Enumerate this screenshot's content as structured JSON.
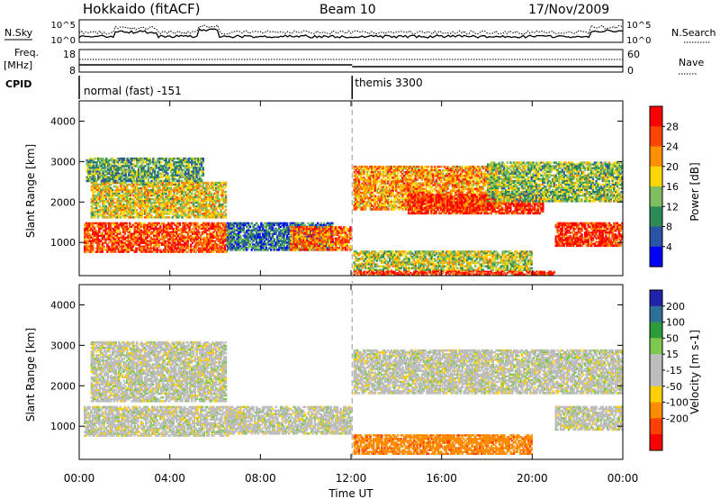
{
  "header": {
    "station": "Hokkaido (fitACF)",
    "beam": "Beam 10",
    "date": "17/Nov/2009"
  },
  "noise_panel": {
    "left_label": "N.Sky",
    "right_label": "N.Search",
    "ticks_left": [
      "10^5",
      "10^0"
    ],
    "ticks_right": [
      "10^5",
      "10^0"
    ]
  },
  "freq_panel": {
    "left_label_line1": "Freq.",
    "left_label_line2": "[MHz]",
    "right_label": "Nave",
    "ticks_left": [
      "18",
      "8"
    ],
    "ticks_right": [
      "60",
      "0"
    ]
  },
  "cpid": {
    "label": "CPID",
    "segments": [
      {
        "name": "normal (fast) -151",
        "start_hour": 0
      },
      {
        "name": "themis 3300",
        "start_hour": 12.05
      }
    ]
  },
  "colors": {
    "power_scale": [
      "#0000ff",
      "#2a54a6",
      "#2e8b57",
      "#7fbf5f",
      "#ffd700",
      "#ff9000",
      "#ff4500",
      "#ff0000"
    ],
    "velocity_scale": [
      "#2222aa",
      "#2e6f9a",
      "#2a9d3a",
      "#7ec850",
      "#bdbdbd",
      "#bdbdbd",
      "#ffd000",
      "#ff8c00",
      "#ff4000",
      "#ff0000"
    ]
  },
  "chart_data": [
    {
      "type": "heatmap",
      "title": "Power",
      "xlabel": "Time UT",
      "ylabel": "Slant Range [km]",
      "ylim": [
        180,
        4500
      ],
      "xlim": [
        0,
        24
      ],
      "yticks": [
        "1000",
        "2000",
        "3000",
        "4000"
      ],
      "colorbar": {
        "label": "Power [dB]",
        "ticks": [
          "4",
          "8",
          "12",
          "16",
          "20",
          "24",
          "28"
        ],
        "range": [
          0,
          32
        ]
      },
      "regions": [
        {
          "t0": 0.2,
          "t1": 6.6,
          "r0": 750,
          "r1": 1500,
          "value": 26
        },
        {
          "t0": 0.5,
          "t1": 6.5,
          "r0": 1600,
          "r1": 2500,
          "value": 18
        },
        {
          "t0": 0.3,
          "t1": 5.5,
          "r0": 2500,
          "r1": 3100,
          "value": 12
        },
        {
          "t0": 6.5,
          "t1": 11.2,
          "r0": 800,
          "r1": 1500,
          "value": 8
        },
        {
          "t0": 9.3,
          "t1": 12.0,
          "r0": 800,
          "r1": 1400,
          "value": 24
        },
        {
          "t0": 12.1,
          "t1": 18.5,
          "r0": 1800,
          "r1": 2900,
          "value": 22
        },
        {
          "t0": 14.5,
          "t1": 20.5,
          "r0": 1700,
          "r1": 2200,
          "value": 28
        },
        {
          "t0": 21.0,
          "t1": 24.0,
          "r0": 900,
          "r1": 1500,
          "value": 28
        },
        {
          "t0": 18.0,
          "t1": 24.0,
          "r0": 2000,
          "r1": 3000,
          "value": 14
        },
        {
          "t0": 12.1,
          "t1": 20.0,
          "r0": 300,
          "r1": 800,
          "value": 16
        },
        {
          "t0": 12.1,
          "t1": 21.0,
          "r0": 200,
          "r1": 300,
          "value": 28
        }
      ]
    },
    {
      "type": "heatmap",
      "title": "Velocity",
      "xlabel": "Time UT",
      "ylabel": "Slant Range [km]",
      "ylim": [
        180,
        4500
      ],
      "xlim": [
        0,
        24
      ],
      "yticks": [
        "1000",
        "2000",
        "3000",
        "4000"
      ],
      "xticks": [
        "00:00",
        "04:00",
        "08:00",
        "12:00",
        "16:00",
        "20:00",
        "00:00"
      ],
      "colorbar": {
        "label": "Velocity [m s-1]",
        "ticks": [
          "200",
          "100",
          "50",
          "15",
          "-15",
          "-50",
          "-100",
          "-200"
        ]
      },
      "regions": [
        {
          "t0": 0.2,
          "t1": 6.6,
          "r0": 750,
          "r1": 1500,
          "value": 0
        },
        {
          "t0": 0.5,
          "t1": 6.5,
          "r0": 1600,
          "r1": 3100,
          "value": 0
        },
        {
          "t0": 6.5,
          "t1": 12.0,
          "r0": 800,
          "r1": 1500,
          "value": 0
        },
        {
          "t0": 12.1,
          "t1": 24.0,
          "r0": 1800,
          "r1": 2900,
          "value": 0
        },
        {
          "t0": 21.0,
          "t1": 24.0,
          "r0": 900,
          "r1": 1500,
          "value": 0
        },
        {
          "t0": 12.1,
          "t1": 20.0,
          "r0": 300,
          "r1": 800,
          "value": -60
        }
      ]
    }
  ]
}
